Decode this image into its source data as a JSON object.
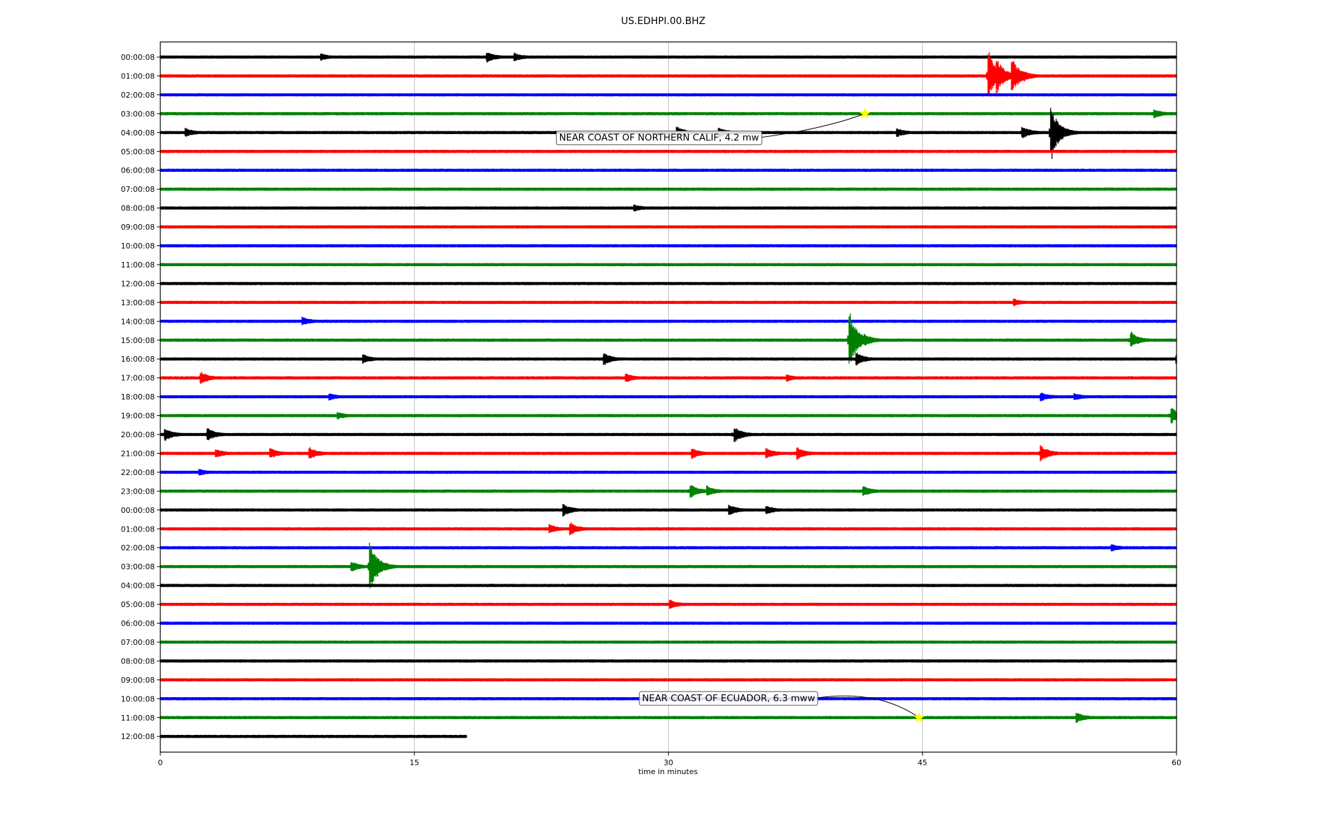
{
  "chart_data": {
    "type": "line",
    "title": "US.EDHPI.00.BHZ",
    "xlabel": "time in minutes",
    "ylabel": "",
    "xlim": [
      0,
      60
    ],
    "x_ticks": [
      "0",
      "15",
      "30",
      "45",
      "60"
    ],
    "x_tick_values": [
      0,
      15,
      30,
      45,
      60
    ],
    "grid": "vertical",
    "line_colors": [
      "#000000",
      "#ff0000",
      "#0000ff",
      "#008000"
    ],
    "row_labels": [
      "00:00:08",
      "01:00:08",
      "02:00:08",
      "03:00:08",
      "04:00:08",
      "05:00:08",
      "06:00:08",
      "07:00:08",
      "08:00:08",
      "09:00:08",
      "10:00:08",
      "11:00:08",
      "12:00:08",
      "13:00:08",
      "14:00:08",
      "15:00:08",
      "16:00:08",
      "17:00:08",
      "18:00:08",
      "19:00:08",
      "20:00:08",
      "21:00:08",
      "22:00:08",
      "23:00:08",
      "00:00:08",
      "01:00:08",
      "02:00:08",
      "03:00:08",
      "04:00:08",
      "05:00:08",
      "06:00:08",
      "07:00:08",
      "08:00:08",
      "09:00:08",
      "10:00:08",
      "11:00:08",
      "12:00:08"
    ],
    "last_row_end_minute": 18.1,
    "events": [
      {
        "row": 0,
        "minute": 19.3,
        "amp": 0.5
      },
      {
        "row": 0,
        "minute": 20.9,
        "amp": 0.4
      },
      {
        "row": 0,
        "minute": 9.5,
        "amp": 0.3
      },
      {
        "row": 1,
        "minute": 48.9,
        "amp": 2.5
      },
      {
        "row": 1,
        "minute": 49.4,
        "amp": 1.8
      },
      {
        "row": 1,
        "minute": 50.3,
        "amp": 1.8
      },
      {
        "row": 1,
        "minute": 51.0,
        "amp": 0.5
      },
      {
        "row": 3,
        "minute": 58.7,
        "amp": 0.4
      },
      {
        "row": 4,
        "minute": 1.5,
        "amp": 0.4
      },
      {
        "row": 4,
        "minute": 30.5,
        "amp": 0.6
      },
      {
        "row": 4,
        "minute": 33.0,
        "amp": 0.5
      },
      {
        "row": 4,
        "minute": 43.5,
        "amp": 0.4
      },
      {
        "row": 4,
        "minute": 50.9,
        "amp": 0.6
      },
      {
        "row": 4,
        "minute": 52.6,
        "amp": 2.8
      },
      {
        "row": 8,
        "minute": 28.0,
        "amp": 0.3
      },
      {
        "row": 13,
        "minute": 50.4,
        "amp": 0.3
      },
      {
        "row": 14,
        "minute": 8.4,
        "amp": 0.4
      },
      {
        "row": 15,
        "minute": 40.7,
        "amp": 2.8
      },
      {
        "row": 15,
        "minute": 41.6,
        "amp": 0.6
      },
      {
        "row": 15,
        "minute": 57.3,
        "amp": 0.8
      },
      {
        "row": 16,
        "minute": 12.0,
        "amp": 0.4
      },
      {
        "row": 16,
        "minute": 26.2,
        "amp": 0.6
      },
      {
        "row": 16,
        "minute": 41.1,
        "amp": 0.6
      },
      {
        "row": 16,
        "minute": 60.0,
        "amp": 0.4
      },
      {
        "row": 17,
        "minute": 2.4,
        "amp": 0.6
      },
      {
        "row": 17,
        "minute": 27.5,
        "amp": 0.4
      },
      {
        "row": 17,
        "minute": 37.0,
        "amp": 0.3
      },
      {
        "row": 18,
        "minute": 10.0,
        "amp": 0.3
      },
      {
        "row": 18,
        "minute": 52.0,
        "amp": 0.4
      },
      {
        "row": 18,
        "minute": 54.0,
        "amp": 0.3
      },
      {
        "row": 19,
        "minute": 10.5,
        "amp": 0.3
      },
      {
        "row": 19,
        "minute": 59.7,
        "amp": 0.8
      },
      {
        "row": 20,
        "minute": 0.3,
        "amp": 0.6
      },
      {
        "row": 20,
        "minute": 2.8,
        "amp": 0.6
      },
      {
        "row": 20,
        "minute": 33.9,
        "amp": 0.8
      },
      {
        "row": 21,
        "minute": 3.3,
        "amp": 0.4
      },
      {
        "row": 21,
        "minute": 6.5,
        "amp": 0.5
      },
      {
        "row": 21,
        "minute": 8.8,
        "amp": 0.6
      },
      {
        "row": 21,
        "minute": 31.4,
        "amp": 0.5
      },
      {
        "row": 21,
        "minute": 35.8,
        "amp": 0.5
      },
      {
        "row": 21,
        "minute": 37.6,
        "amp": 0.6
      },
      {
        "row": 21,
        "minute": 52.0,
        "amp": 0.8
      },
      {
        "row": 22,
        "minute": 2.3,
        "amp": 0.3
      },
      {
        "row": 23,
        "minute": 31.3,
        "amp": 0.7
      },
      {
        "row": 23,
        "minute": 32.3,
        "amp": 0.5
      },
      {
        "row": 23,
        "minute": 41.5,
        "amp": 0.5
      },
      {
        "row": 24,
        "minute": 23.8,
        "amp": 0.6
      },
      {
        "row": 24,
        "minute": 33.6,
        "amp": 0.5
      },
      {
        "row": 24,
        "minute": 35.8,
        "amp": 0.4
      },
      {
        "row": 25,
        "minute": 23.0,
        "amp": 0.4
      },
      {
        "row": 25,
        "minute": 24.2,
        "amp": 0.6
      },
      {
        "row": 26,
        "minute": 56.2,
        "amp": 0.3
      },
      {
        "row": 27,
        "minute": 11.3,
        "amp": 0.5
      },
      {
        "row": 27,
        "minute": 12.4,
        "amp": 2.5
      },
      {
        "row": 29,
        "minute": 30.1,
        "amp": 0.4
      },
      {
        "row": 35,
        "minute": 54.1,
        "amp": 0.5
      }
    ],
    "annotations": [
      {
        "label": "NEAR COAST OF NORTHERN CALIF, 4.2 mw",
        "row": 3,
        "minute": 41.6,
        "text_row": 4.25,
        "text_minute": 23.3,
        "marker": "star",
        "marker_color": "#ffff00"
      },
      {
        "label": "NEAR COAST OF ECUADOR, 6.3 mww",
        "row": 35,
        "minute": 44.8,
        "text_row": 33.95,
        "text_minute": 28.2,
        "marker": "star",
        "marker_color": "#ffff00"
      }
    ]
  }
}
